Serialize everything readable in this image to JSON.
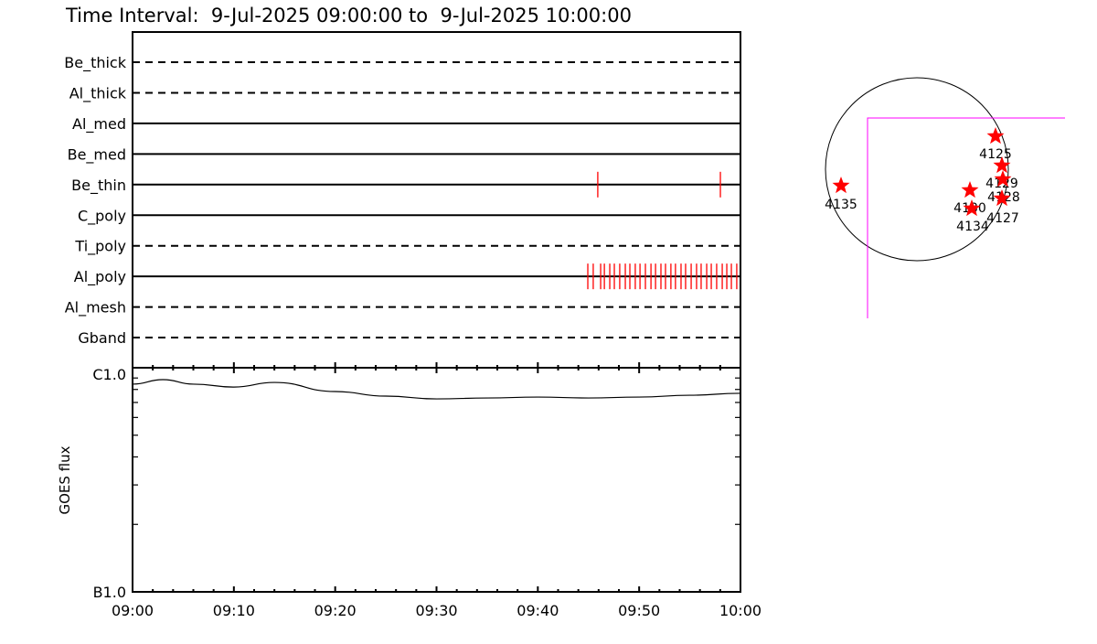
{
  "title": "Time Interval:  9-Jul-2025 09:00:00 to  9-Jul-2025 10:00:00",
  "colors": {
    "axes": "#000000",
    "observation_ticks": "#ff0000",
    "fov_box": "#ff00ff",
    "stars": "#ff0000"
  },
  "chart_data": [
    {
      "type": "timeline",
      "xlim": [
        "09:00",
        "10:00"
      ],
      "filters": [
        {
          "name": "Be_thick",
          "style": "dashed",
          "observations": []
        },
        {
          "name": "Al_thick",
          "style": "dashed",
          "observations": []
        },
        {
          "name": "Al_med",
          "style": "solid",
          "observations": []
        },
        {
          "name": "Be_med",
          "style": "solid",
          "observations": []
        },
        {
          "name": "Be_thin",
          "style": "solid",
          "observations": [
            "09:45:55",
            "09:58:01"
          ]
        },
        {
          "name": "C_poly",
          "style": "solid",
          "observations": []
        },
        {
          "name": "Ti_poly",
          "style": "dashed",
          "observations": []
        },
        {
          "name": "Al_poly",
          "style": "solid",
          "observations": [
            "09:44:56",
            "09:45:28",
            "09:46:12",
            "09:46:34",
            "09:47:06",
            "09:47:33",
            "09:48:05",
            "09:48:38",
            "09:49:05",
            "09:49:37",
            "09:50:05",
            "09:50:37",
            "09:51:10",
            "09:51:37",
            "09:52:09",
            "09:52:36",
            "09:53:08",
            "09:53:35",
            "09:54:08",
            "09:54:35",
            "09:55:08",
            "09:55:40",
            "09:56:07",
            "09:56:40",
            "09:57:07",
            "09:57:39",
            "09:58:12",
            "09:58:39",
            "09:59:06",
            "09:59:38"
          ]
        },
        {
          "name": "Al_mesh",
          "style": "dashed",
          "observations": []
        },
        {
          "name": "Gband",
          "style": "dashed",
          "observations": []
        }
      ]
    },
    {
      "type": "line",
      "ylabel": "GOES flux",
      "yscale": "log",
      "ylim": [
        1e-07,
        1e-06
      ],
      "ytick_labels": [
        "B1.0",
        "C1.0"
      ],
      "xtick_labels": [
        "09:00",
        "09:10",
        "09:20",
        "09:30",
        "09:40",
        "09:50",
        "10:00"
      ],
      "x": [
        "09:00",
        "09:03",
        "09:06",
        "09:10",
        "09:14",
        "09:20",
        "09:25",
        "09:30",
        "09:35",
        "09:40",
        "09:45",
        "09:50",
        "09:55",
        "10:00"
      ],
      "y": [
        8.45e-07,
        8.85e-07,
        8.45e-07,
        8.2e-07,
        8.6e-07,
        7.83e-07,
        7.47e-07,
        7.26e-07,
        7.33e-07,
        7.4e-07,
        7.33e-07,
        7.4e-07,
        7.54e-07,
        7.69e-07
      ]
    },
    {
      "type": "map",
      "active_regions": [
        "4125",
        "4129",
        "4128",
        "4130",
        "4134",
        "4127",
        "4135"
      ]
    }
  ]
}
